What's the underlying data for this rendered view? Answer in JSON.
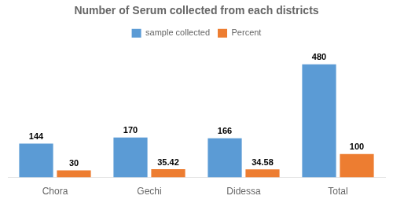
{
  "chart_data": {
    "type": "bar",
    "title": "Number of Serum collected from each districts",
    "categories": [
      "Chora",
      "Gechi",
      "Didessa",
      "Total"
    ],
    "series": [
      {
        "name": "sample collected",
        "color": "#5b9bd5",
        "values": [
          144,
          170,
          166,
          480
        ]
      },
      {
        "name": "Percent",
        "color": "#ed7d31",
        "values": [
          30,
          35.42,
          34.58,
          100
        ]
      }
    ],
    "ylim": [
      0,
      560
    ],
    "grid": false,
    "legend": "top",
    "data_labels": true,
    "tick_labels": "x"
  }
}
